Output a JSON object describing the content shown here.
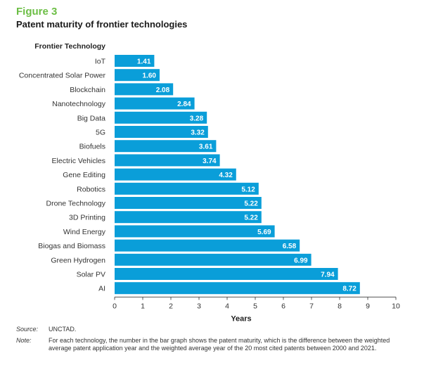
{
  "figure": {
    "label": "Figure 3",
    "title": "Patent maturity of frontier technologies"
  },
  "chart_data": {
    "type": "bar",
    "orientation": "horizontal",
    "category_header": "Frontier Technology",
    "xlabel": "Years",
    "xlim": [
      0,
      10
    ],
    "xticks": [
      "0",
      "1",
      "2",
      "3",
      "4",
      "5",
      "6",
      "7",
      "8",
      "9",
      "10"
    ],
    "bar_color": "#0a9ed9",
    "label_color": "#ffffff",
    "grid": false,
    "categories": [
      "IoT",
      "Concentrated Solar Power",
      "Blockchain",
      "Nanotechnology",
      "Big Data",
      "5G",
      "Biofuels",
      "Electric Vehicles",
      "Gene Editing",
      "Robotics",
      "Drone Technology",
      "3D Printing",
      "Wind Energy",
      "Biogas and Biomass",
      "Green Hydrogen",
      "Solar PV",
      "AI"
    ],
    "values": [
      1.41,
      1.6,
      2.08,
      2.84,
      3.28,
      3.32,
      3.61,
      3.74,
      4.32,
      5.12,
      5.22,
      5.22,
      5.69,
      6.58,
      6.99,
      7.94,
      8.72
    ],
    "value_labels": [
      "1.41",
      "1.60",
      "2.08",
      "2.84",
      "3.28",
      "3.32",
      "3.61",
      "3.74",
      "4.32",
      "5.12",
      "5.22",
      "5.22",
      "5.69",
      "6.58",
      "6.99",
      "7.94",
      "8.72"
    ]
  },
  "footer": {
    "source_key": "Source:",
    "source_value": "UNCTAD.",
    "note_key": "Note:",
    "note_value": "For each technology, the number in the bar graph shows the patent maturity, which is the difference between the weighted average patent application year and the weighted average year of the 20 most cited patents between 2000 and 2021."
  }
}
